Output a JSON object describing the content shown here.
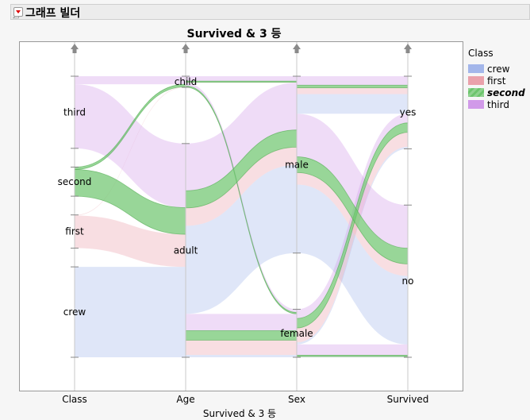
{
  "header": {
    "title": "그래프 빌더"
  },
  "chart_data": {
    "type": "parallel-sets",
    "title": "Survived & 3 등",
    "xlabel": "Survived & 3 등",
    "axes": [
      {
        "name": "Class",
        "categories": [
          "third",
          "second",
          "first",
          "crew"
        ]
      },
      {
        "name": "Age",
        "categories": [
          "child",
          "adult"
        ]
      },
      {
        "name": "Sex",
        "categories": [
          "male",
          "female"
        ]
      },
      {
        "name": "Survived",
        "categories": [
          "yes",
          "no"
        ]
      }
    ],
    "color_by": "Class",
    "highlighted": "second",
    "legend": {
      "title": "Class",
      "position": "right",
      "items": [
        {
          "label": "crew",
          "color": "#a3b6ea"
        },
        {
          "label": "first",
          "color": "#eaa1ab"
        },
        {
          "label": "second",
          "color": "#6cc56c"
        },
        {
          "label": "third",
          "color": "#d19ae9"
        }
      ]
    },
    "rows": [
      [
        "crew",
        "adult",
        "male",
        "no",
        670
      ],
      [
        "crew",
        "adult",
        "male",
        "yes",
        192
      ],
      [
        "crew",
        "adult",
        "female",
        "no",
        3
      ],
      [
        "crew",
        "adult",
        "female",
        "yes",
        20
      ],
      [
        "first",
        "child",
        "male",
        "yes",
        5
      ],
      [
        "first",
        "child",
        "female",
        "yes",
        1
      ],
      [
        "first",
        "adult",
        "male",
        "no",
        118
      ],
      [
        "first",
        "adult",
        "male",
        "yes",
        57
      ],
      [
        "first",
        "adult",
        "female",
        "no",
        4
      ],
      [
        "first",
        "adult",
        "female",
        "yes",
        140
      ],
      [
        "second",
        "child",
        "male",
        "yes",
        11
      ],
      [
        "second",
        "child",
        "female",
        "yes",
        13
      ],
      [
        "second",
        "adult",
        "male",
        "no",
        154
      ],
      [
        "second",
        "adult",
        "male",
        "yes",
        14
      ],
      [
        "second",
        "adult",
        "female",
        "no",
        13
      ],
      [
        "second",
        "adult",
        "female",
        "yes",
        80
      ],
      [
        "third",
        "child",
        "male",
        "no",
        35
      ],
      [
        "third",
        "child",
        "male",
        "yes",
        13
      ],
      [
        "third",
        "child",
        "female",
        "no",
        17
      ],
      [
        "third",
        "child",
        "female",
        "yes",
        14
      ],
      [
        "third",
        "adult",
        "male",
        "no",
        387
      ],
      [
        "third",
        "adult",
        "male",
        "yes",
        75
      ],
      [
        "third",
        "adult",
        "female",
        "no",
        89
      ],
      [
        "third",
        "adult",
        "female",
        "yes",
        76
      ]
    ]
  }
}
